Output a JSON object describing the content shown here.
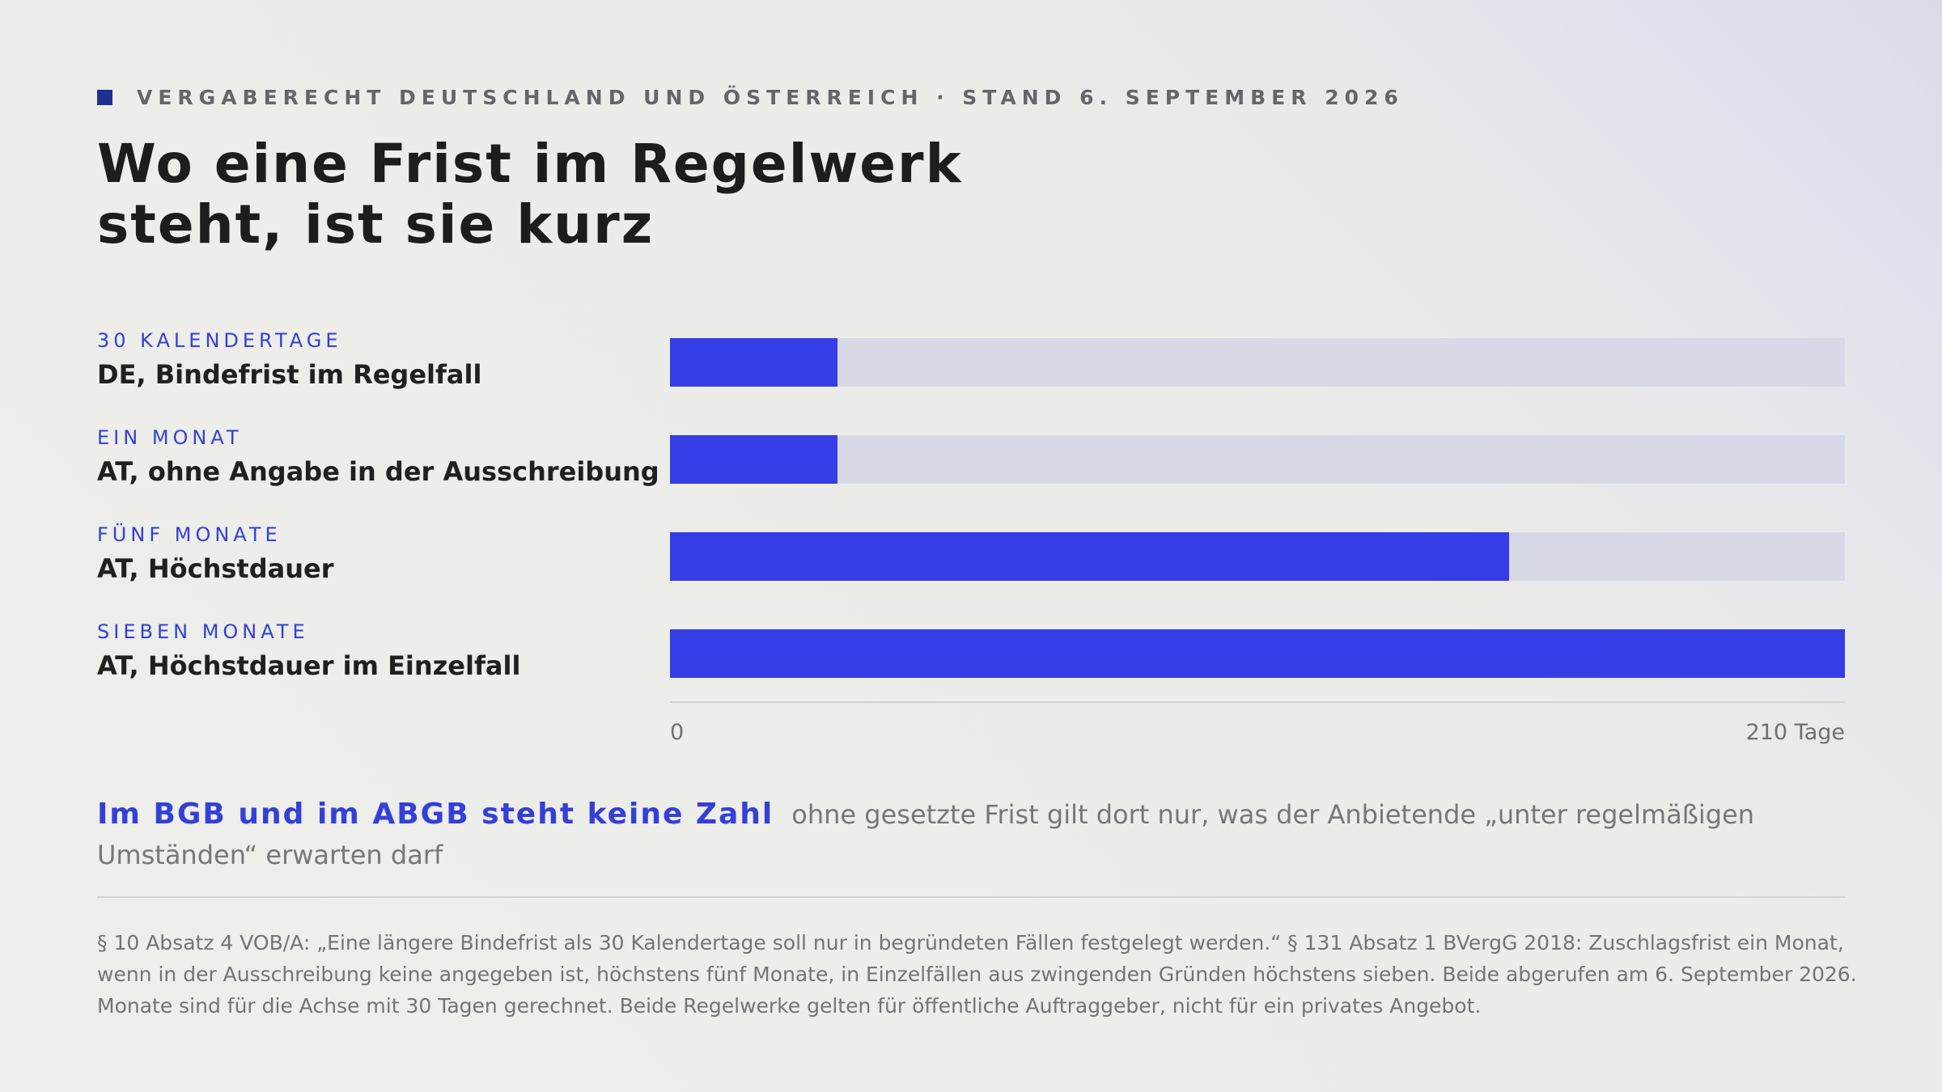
{
  "header": {
    "kicker": "VERGABERECHT DEUTSCHLAND UND ÖSTERREICH · STAND 6. SEPTEMBER 2026",
    "title_line1": "Wo eine Frist im Regelwerk",
    "title_line2": "steht, ist sie kurz"
  },
  "chart_data": {
    "type": "bar",
    "orientation": "horizontal",
    "categories": [
      "DE, Bindefrist im Regelfall",
      "AT, ohne Angabe in der Ausschreibung",
      "AT, Höchstdauer",
      "AT, Höchstdauer im Einzelfall"
    ],
    "category_kickers": [
      "30 KALENDERTAGE",
      "EIN MONAT",
      "FÜNF MONATE",
      "SIEBEN MONATE"
    ],
    "values": [
      30,
      30,
      150,
      210
    ],
    "xlim": [
      0,
      210
    ],
    "tick_labels": [
      "0",
      "210 Tage"
    ],
    "grid": false,
    "colors": {
      "bar": "#343de6",
      "track": "#d8d9e7",
      "accent": "#3340d8"
    }
  },
  "note": {
    "strong": "Im BGB und im ABGB steht keine Zahl",
    "text": "ohne gesetzte Frist gilt dort nur, was der Anbietende „unter regelmäßigen Umständen“ erwarten darf"
  },
  "footnote": "§ 10 Absatz 4 VOB/A: „Eine längere Bindefrist als 30 Kalendertage soll nur in begründeten Fällen festgelegt werden.“ § 131 Absatz 1 BVergG 2018: Zuschlagsfrist ein Monat, wenn in der Ausschreibung keine angegeben ist, höchstens fünf Monate, in Einzelfällen aus zwingenden Gründen höchstens sieben. Beide abgerufen am 6. September 2026. Monate sind für die Achse mit 30 Tagen gerechnet. Beide Regelwerke gelten für öffentliche Auftraggeber, nicht für ein privates Angebot."
}
